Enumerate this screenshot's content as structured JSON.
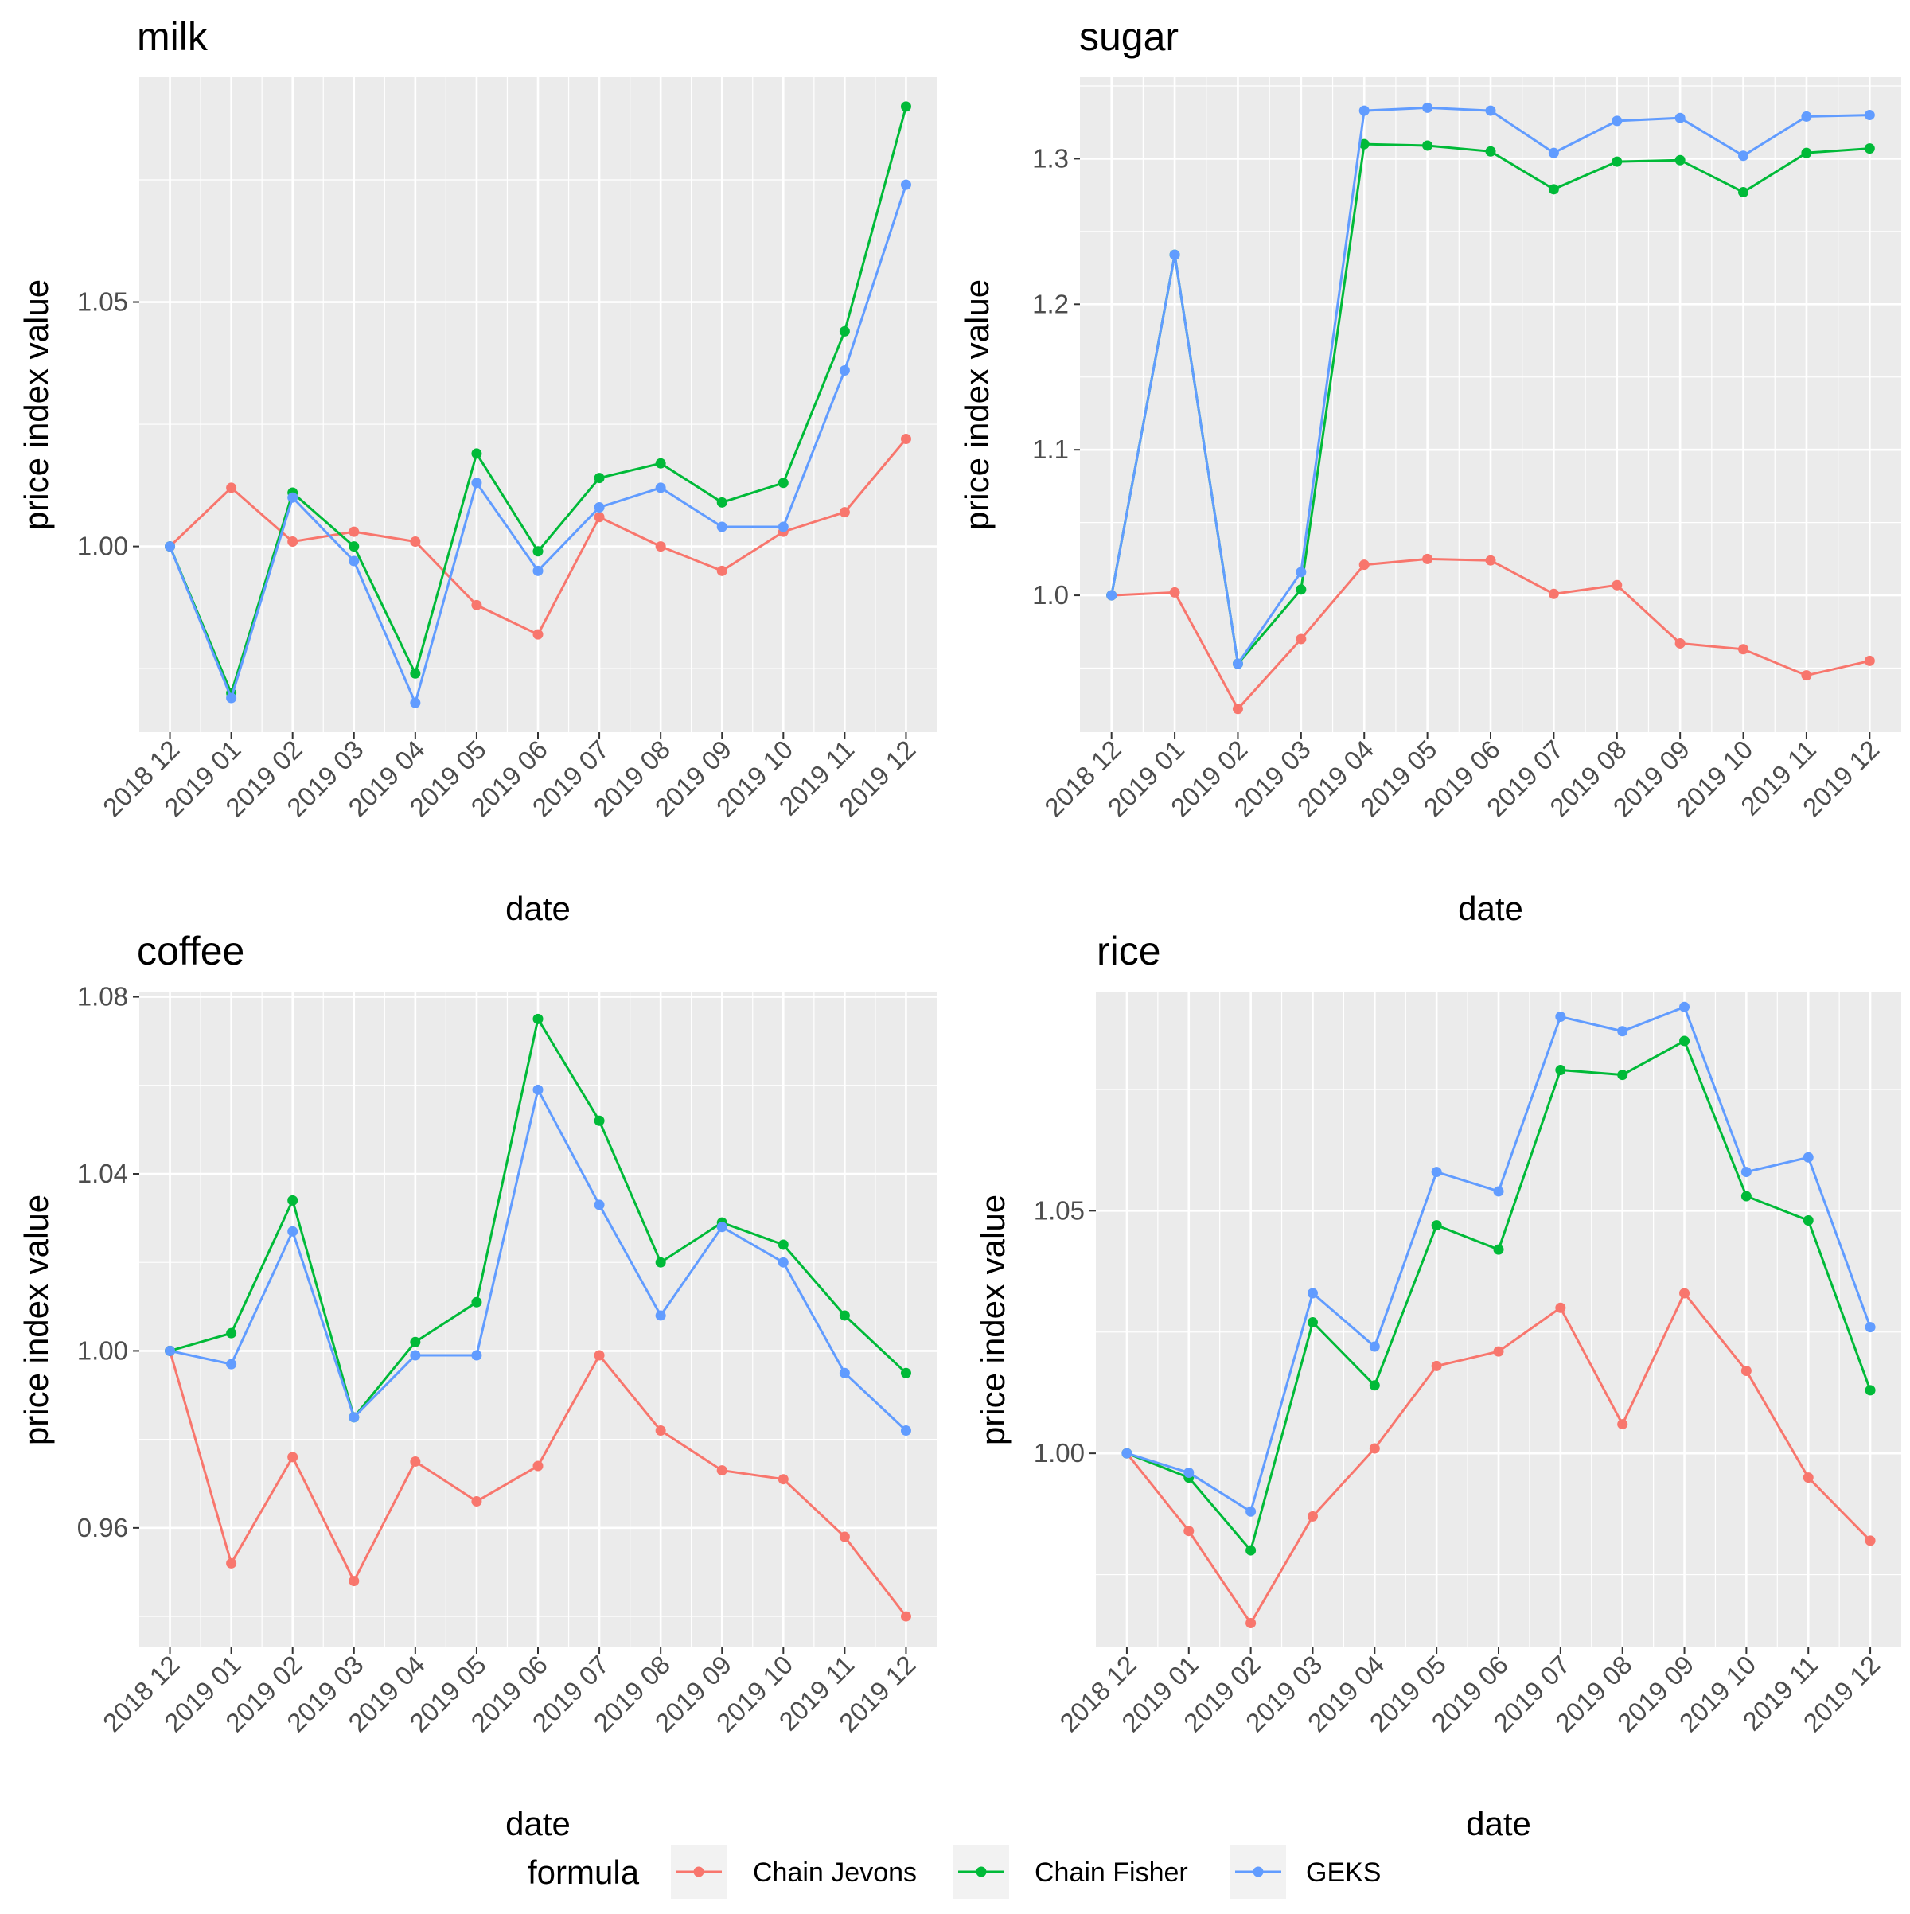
{
  "chart_data": [
    {
      "type": "line",
      "title": "milk",
      "xlabel": "date",
      "ylabel": "price index value",
      "categories": [
        "2018 12",
        "2019 01",
        "2019 02",
        "2019 03",
        "2019 04",
        "2019 05",
        "2019 06",
        "2019 07",
        "2019 08",
        "2019 09",
        "2019 10",
        "2019 11",
        "2019 12"
      ],
      "ylim": [
        0.962,
        1.096
      ],
      "yticks": [
        1.0,
        1.05
      ],
      "ytick_labels": [
        "1.00",
        "1.05"
      ],
      "grid": true,
      "series": [
        {
          "name": "Chain Jevons",
          "values": [
            1.0,
            1.012,
            1.001,
            1.003,
            1.001,
            0.988,
            0.982,
            1.006,
            1.0,
            0.995,
            1.003,
            1.007,
            1.022
          ]
        },
        {
          "name": "Chain Fisher",
          "values": [
            1.0,
            0.97,
            1.011,
            1.0,
            0.974,
            1.019,
            0.999,
            1.014,
            1.017,
            1.009,
            1.013,
            1.044,
            1.09
          ]
        },
        {
          "name": "GEKS",
          "values": [
            1.0,
            0.969,
            1.01,
            0.997,
            0.968,
            1.013,
            0.995,
            1.008,
            1.012,
            1.004,
            1.004,
            1.036,
            1.074
          ]
        }
      ]
    },
    {
      "type": "line",
      "title": "sugar",
      "xlabel": "date",
      "ylabel": "price index value",
      "categories": [
        "2018 12",
        "2019 01",
        "2019 02",
        "2019 03",
        "2019 04",
        "2019 05",
        "2019 06",
        "2019 07",
        "2019 08",
        "2019 09",
        "2019 10",
        "2019 11",
        "2019 12"
      ],
      "ylim": [
        0.906,
        1.356
      ],
      "yticks": [
        1.0,
        1.1,
        1.2,
        1.3
      ],
      "ytick_labels": [
        "1.0",
        "1.1",
        "1.2",
        "1.3"
      ],
      "grid": true,
      "series": [
        {
          "name": "Chain Jevons",
          "values": [
            1.0,
            1.002,
            0.922,
            0.97,
            1.021,
            1.025,
            1.024,
            1.001,
            1.007,
            0.967,
            0.963,
            0.945,
            0.955
          ]
        },
        {
          "name": "Chain Fisher",
          "values": [
            1.0,
            1.234,
            0.953,
            1.004,
            1.31,
            1.309,
            1.305,
            1.279,
            1.298,
            1.299,
            1.277,
            1.304,
            1.307
          ]
        },
        {
          "name": "GEKS",
          "values": [
            1.0,
            1.234,
            0.953,
            1.016,
            1.333,
            1.335,
            1.333,
            1.304,
            1.326,
            1.328,
            1.302,
            1.329,
            1.33
          ]
        }
      ]
    },
    {
      "type": "line",
      "title": "coffee",
      "xlabel": "date",
      "ylabel": "price index value",
      "categories": [
        "2018 12",
        "2019 01",
        "2019 02",
        "2019 03",
        "2019 04",
        "2019 05",
        "2019 06",
        "2019 07",
        "2019 08",
        "2019 09",
        "2019 10",
        "2019 11",
        "2019 12"
      ],
      "ylim": [
        0.933,
        1.081
      ],
      "yticks": [
        0.96,
        1.0,
        1.04,
        1.08
      ],
      "ytick_labels": [
        "0.96",
        "1.00",
        "1.04",
        "1.08"
      ],
      "grid": true,
      "series": [
        {
          "name": "Chain Jevons",
          "values": [
            1.0,
            0.952,
            0.976,
            0.948,
            0.975,
            0.966,
            0.974,
            0.999,
            0.982,
            0.973,
            0.971,
            0.958,
            0.94
          ]
        },
        {
          "name": "Chain Fisher",
          "values": [
            1.0,
            1.004,
            1.034,
            0.985,
            1.002,
            1.011,
            1.075,
            1.052,
            1.02,
            1.029,
            1.024,
            1.008,
            0.995
          ]
        },
        {
          "name": "GEKS",
          "values": [
            1.0,
            0.997,
            1.027,
            0.985,
            0.999,
            0.999,
            1.059,
            1.033,
            1.008,
            1.028,
            1.02,
            0.995,
            0.982
          ]
        }
      ]
    },
    {
      "type": "line",
      "title": "rice",
      "xlabel": "date",
      "ylabel": "price index value",
      "categories": [
        "2018 12",
        "2019 01",
        "2019 02",
        "2019 03",
        "2019 04",
        "2019 05",
        "2019 06",
        "2019 07",
        "2019 08",
        "2019 09",
        "2019 10",
        "2019 11",
        "2019 12"
      ],
      "ylim": [
        0.96,
        1.095
      ],
      "yticks": [
        1.0,
        1.05
      ],
      "ytick_labels": [
        "1.00",
        "1.05"
      ],
      "grid": true,
      "series": [
        {
          "name": "Chain Jevons",
          "values": [
            1.0,
            0.984,
            0.965,
            0.987,
            1.001,
            1.018,
            1.021,
            1.03,
            1.006,
            1.033,
            1.017,
            0.995,
            0.982
          ]
        },
        {
          "name": "Chain Fisher",
          "values": [
            1.0,
            0.995,
            0.98,
            1.027,
            1.014,
            1.047,
            1.042,
            1.079,
            1.078,
            1.085,
            1.053,
            1.048,
            1.013
          ]
        },
        {
          "name": "GEKS",
          "values": [
            1.0,
            0.996,
            0.988,
            1.033,
            1.022,
            1.058,
            1.054,
            1.09,
            1.087,
            1.092,
            1.058,
            1.061,
            1.026
          ]
        }
      ]
    }
  ],
  "legend": {
    "title": "formula",
    "position": "bottom",
    "items": [
      {
        "label": "Chain Jevons",
        "color": "#F8766D"
      },
      {
        "label": "Chain Fisher",
        "color": "#00BA38"
      },
      {
        "label": "GEKS",
        "color": "#619CFF"
      }
    ]
  }
}
